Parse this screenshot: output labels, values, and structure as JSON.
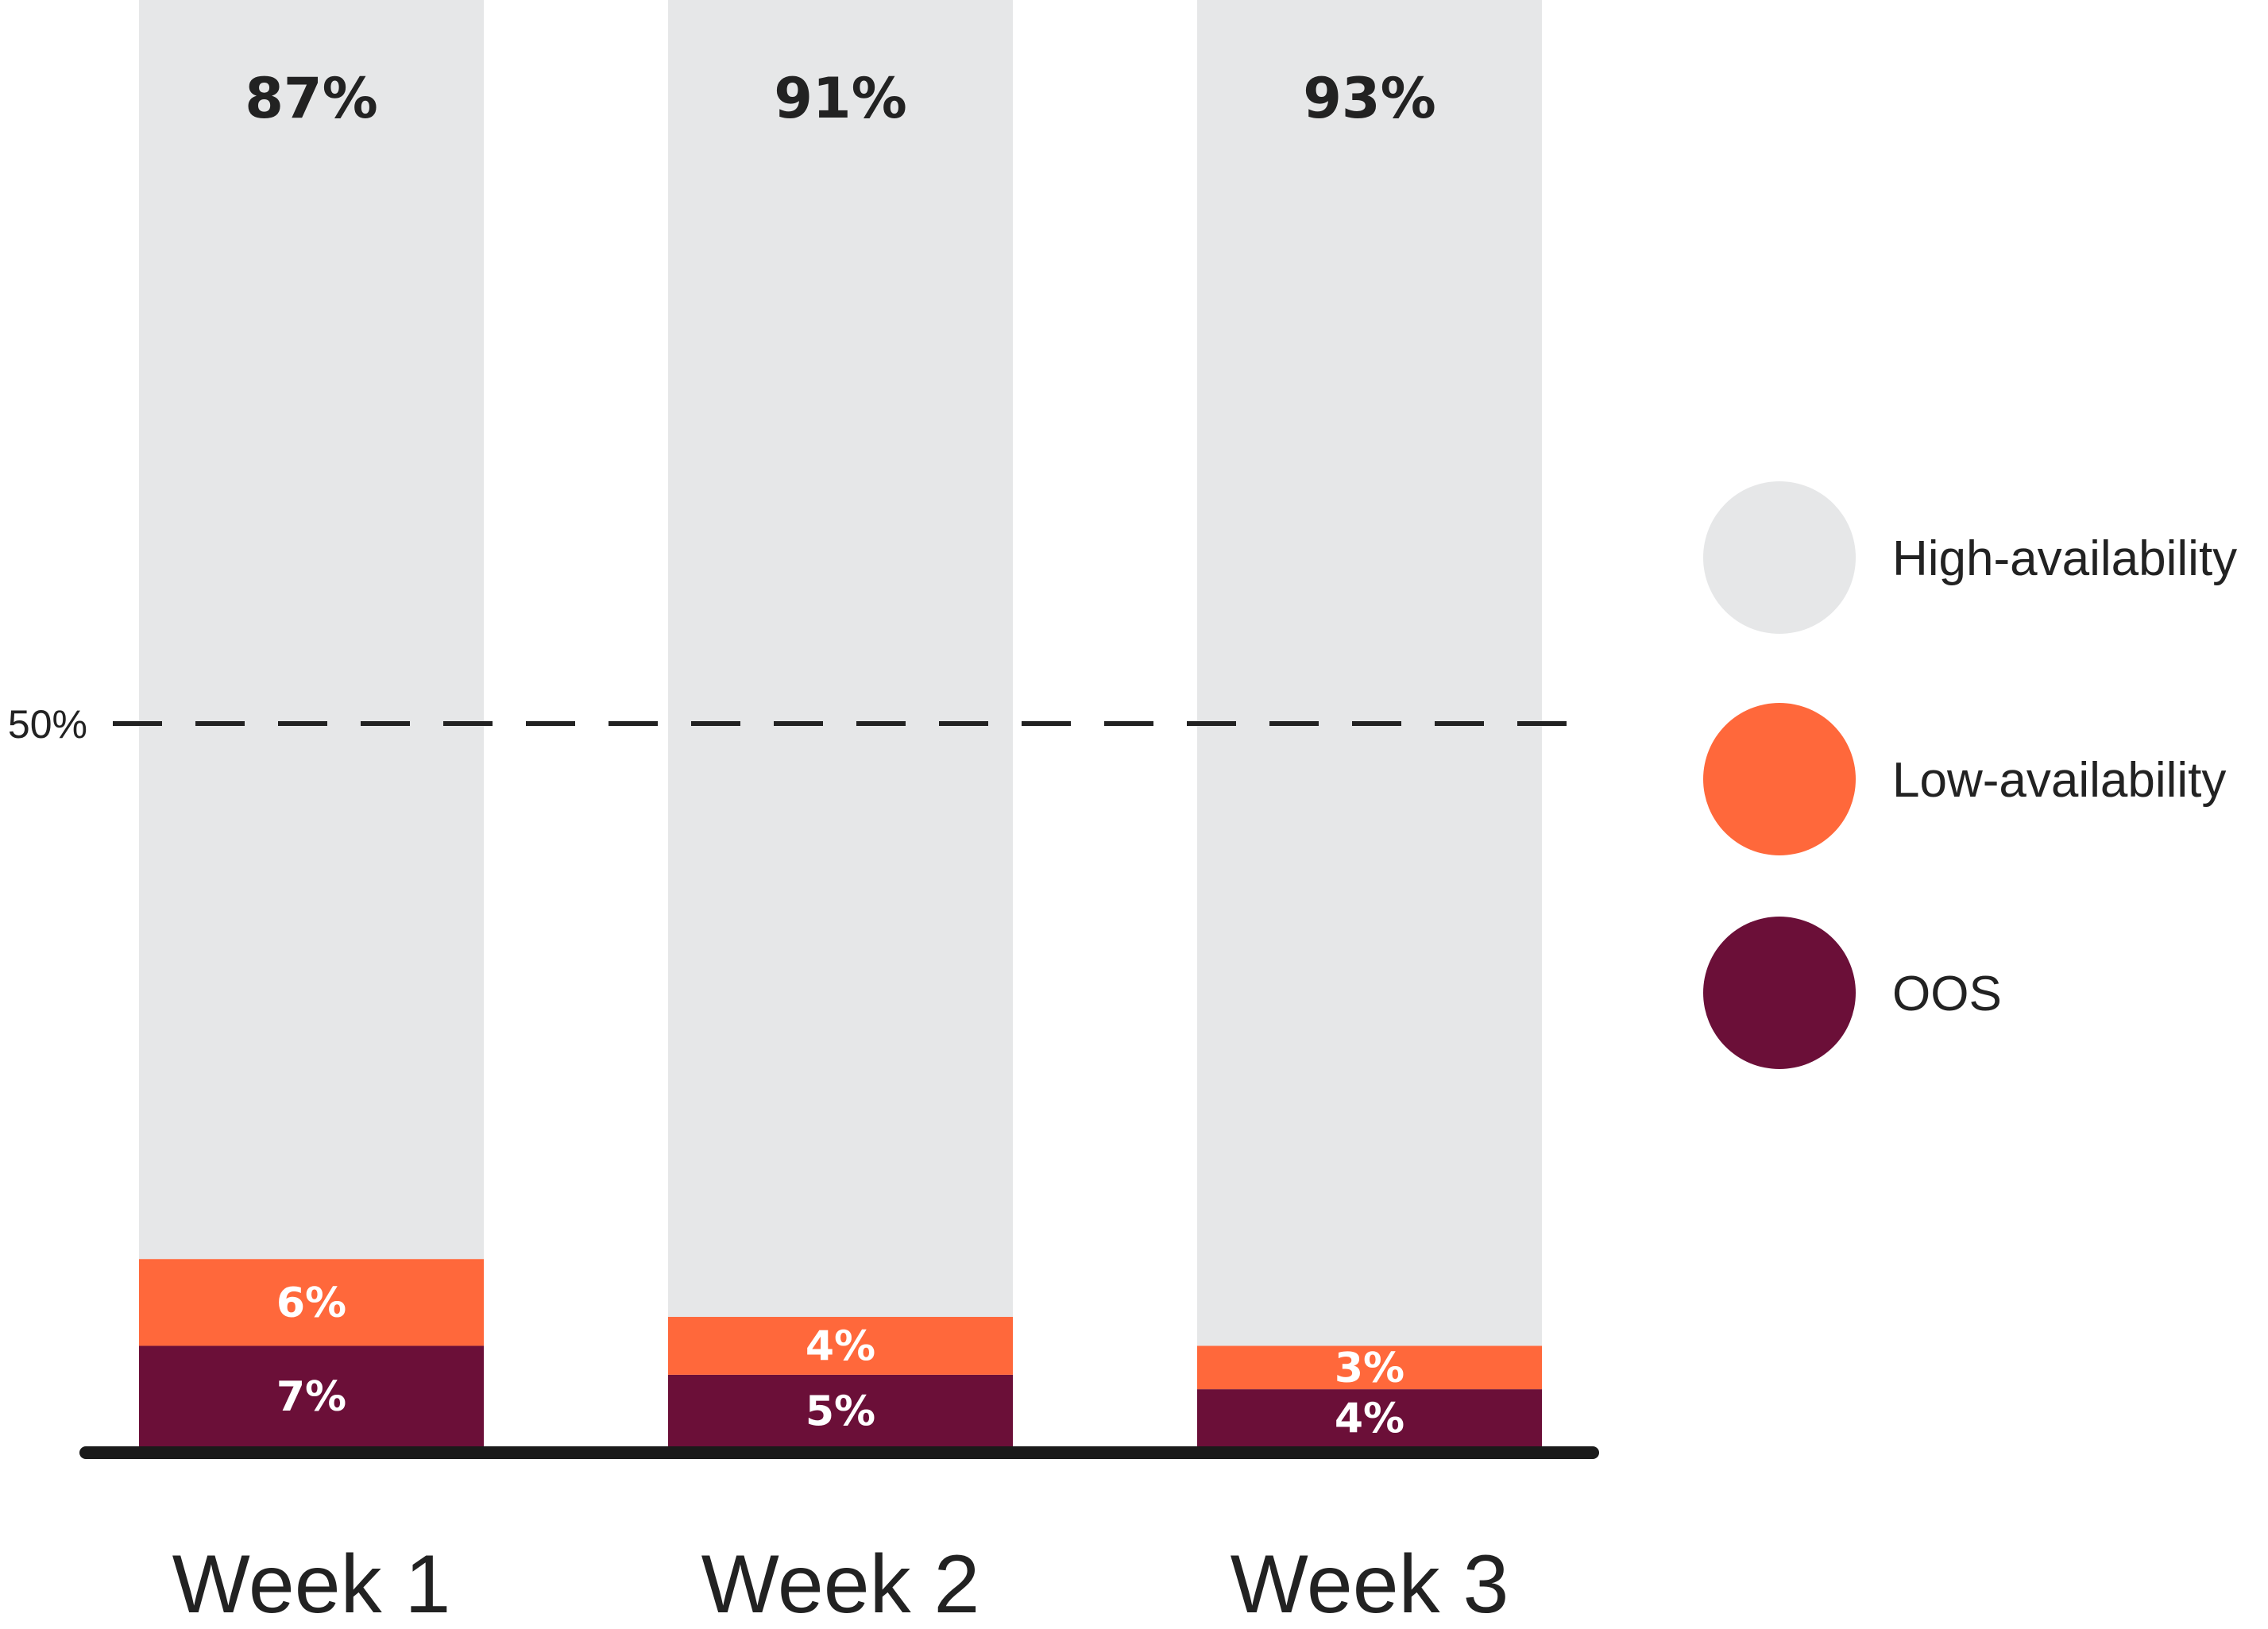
{
  "chart_data": {
    "type": "bar",
    "stacked": true,
    "categories": [
      "Week 1",
      "Week 2",
      "Week 3"
    ],
    "series": [
      {
        "name": "OOS",
        "values": [
          7,
          5,
          4
        ],
        "labels": [
          "7%",
          "5%",
          "4%"
        ],
        "color": "#6B0F38"
      },
      {
        "name": "Low-availability",
        "values": [
          6,
          4,
          3
        ],
        "labels": [
          "6%",
          "4%",
          "3%"
        ],
        "color": "#FF683B"
      },
      {
        "name": "High-availability",
        "values": [
          87,
          91,
          93
        ],
        "labels": [
          "87%",
          "91%",
          "93%"
        ],
        "color": "#E6E7E8"
      }
    ],
    "ylim": [
      0,
      100
    ],
    "reference_line": {
      "value": 50,
      "label": "50%",
      "style": "dashed"
    },
    "legend": {
      "position": "right",
      "entries": [
        {
          "name": "High-availability",
          "color": "#E6E7E8"
        },
        {
          "name": "Low-availability",
          "color": "#FF683B"
        },
        {
          "name": "OOS",
          "color": "#6B0F38"
        }
      ]
    },
    "grid": false,
    "title": "",
    "xlabel": "",
    "ylabel": ""
  }
}
